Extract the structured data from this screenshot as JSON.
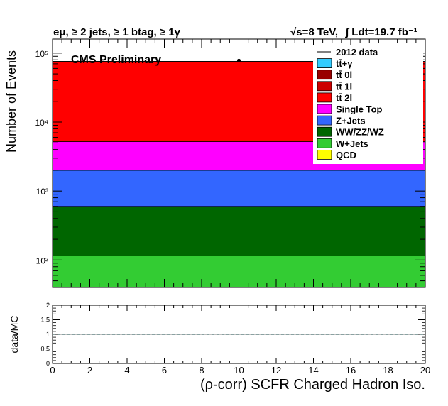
{
  "chart_data": {
    "type": "bar",
    "subtype": "stacked-histogram-log",
    "header_left": "eμ, ≥ 2 jets, ≥ 1 btag, ≥ 1γ",
    "header_right_energy": "√s=8 TeV,",
    "header_right_lumi": "∫ Ldt=19.7 fb⁻¹",
    "cms_label": "CMS Preliminary",
    "ylabel": "Number of Events",
    "xlabel": "(ρ-corr) SCFR Charged Hadron Iso.",
    "ratio_ylabel": "data/MC",
    "xlim": [
      0,
      20
    ],
    "ylim_log": [
      40,
      160000
    ],
    "bin_edges": [
      0,
      20
    ],
    "y_ticks": [
      {
        "value": 100,
        "label": "10²"
      },
      {
        "value": 1000,
        "label": "10³"
      },
      {
        "value": 10000,
        "label": "10⁴"
      },
      {
        "value": 100000,
        "label": "10⁵"
      }
    ],
    "x_ticks": [
      0,
      2,
      4,
      6,
      8,
      10,
      12,
      14,
      16,
      18,
      20
    ],
    "ratio_ylim": [
      0,
      2
    ],
    "ratio_ticks": [
      {
        "value": 0,
        "label": "0"
      },
      {
        "value": 0.5,
        "label": "0.5"
      },
      {
        "value": 1,
        "label": "1"
      },
      {
        "value": 1.5,
        "label": "1.5"
      },
      {
        "value": 2,
        "label": "2"
      }
    ],
    "stack": [
      {
        "name": "QCD",
        "value": 0,
        "color": "#ffff00"
      },
      {
        "name": "W+Jets",
        "value": 115,
        "color": "#33cc33"
      },
      {
        "name": "WW/ZZ/WZ",
        "value": 485,
        "color": "#006600"
      },
      {
        "name": "Z+Jets",
        "value": 1400,
        "color": "#3366ff"
      },
      {
        "name": "Single Top",
        "value": 3200,
        "color": "#ff00ff"
      },
      {
        "name": "tt̄ 2l",
        "value": 70000,
        "color": "#ff0000"
      },
      {
        "name": "tt̄ 1l",
        "value": 300,
        "color": "#cc0000"
      },
      {
        "name": "tt̄ 0l",
        "value": 100,
        "color": "#990000"
      },
      {
        "name": "tt̄+γ",
        "value": 200,
        "color": "#33ccff"
      }
    ],
    "data_points": [
      {
        "x": 10,
        "y": 78000,
        "xerr": 10
      }
    ],
    "ratio": [
      {
        "x": 10,
        "y": 1.0
      }
    ],
    "legend": [
      {
        "label": "2012 data",
        "kind": "marker",
        "color": "#000000"
      },
      {
        "label": "tt̄+γ",
        "kind": "box",
        "color": "#33ccff"
      },
      {
        "label": "tt̄ 0l",
        "kind": "box",
        "color": "#990000"
      },
      {
        "label": "tt̄ 1l",
        "kind": "box",
        "color": "#cc0000"
      },
      {
        "label": "tt̄ 2l",
        "kind": "box",
        "color": "#ff0000"
      },
      {
        "label": "Single Top",
        "kind": "box",
        "color": "#ff00ff"
      },
      {
        "label": "Z+Jets",
        "kind": "box",
        "color": "#3366ff"
      },
      {
        "label": "WW/ZZ/WZ",
        "kind": "box",
        "color": "#006600"
      },
      {
        "label": "W+Jets",
        "kind": "box",
        "color": "#33cc33"
      },
      {
        "label": "QCD",
        "kind": "box",
        "color": "#ffff00"
      }
    ],
    "legend_position": "top-right"
  }
}
